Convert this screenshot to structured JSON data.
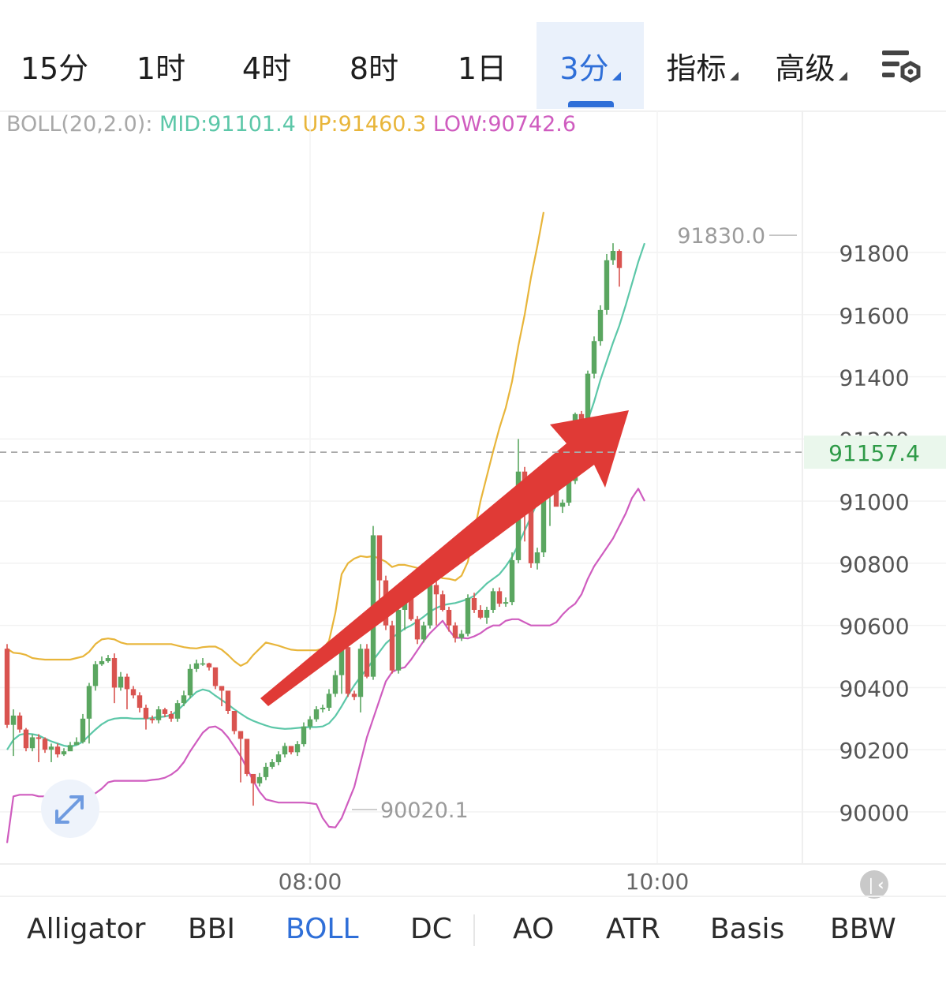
{
  "tabs": [
    {
      "label": "15分",
      "dropdown": false,
      "active": false
    },
    {
      "label": "1时",
      "dropdown": false,
      "active": false
    },
    {
      "label": "4时",
      "dropdown": false,
      "active": false
    },
    {
      "label": "8时",
      "dropdown": false,
      "active": false
    },
    {
      "label": "1日",
      "dropdown": false,
      "active": false
    },
    {
      "label": "3分",
      "dropdown": true,
      "active": true
    },
    {
      "label": "指标",
      "dropdown": true,
      "active": false
    },
    {
      "label": "高级",
      "dropdown": true,
      "active": false
    }
  ],
  "settings_icon": "chart-settings-icon",
  "boll": {
    "name": "BOLL(20,2.0):",
    "mid": "MID:91101.4",
    "up": "UP:91460.3",
    "low": "LOW:90742.6"
  },
  "colors": {
    "up_candle": "#5aa660",
    "down_candle": "#d9534f",
    "mid_line": "#5cc7a8",
    "upper_line": "#e8b53a",
    "lower_line": "#cf5cbf",
    "arrow": "#e03a36",
    "accent": "#2f6fd8",
    "current_price_bg": "#eaf7ec",
    "current_price_text": "#2e9a47"
  },
  "chart_data": {
    "type": "candlestick",
    "y_ticks": [
      91800,
      91600,
      91400,
      91200,
      91000,
      90800,
      90600,
      90400,
      90200,
      90000
    ],
    "y_tick_labels": [
      "91800",
      "91600",
      "91400",
      "91200",
      "91000",
      "90800",
      "90600",
      "90400",
      "90200",
      "90000"
    ],
    "ylim": [
      89900,
      92000
    ],
    "x_tick_labels": [
      {
        "label": "08:00",
        "candle_index": 48
      },
      {
        "label": "10:00",
        "candle_index": 103
      }
    ],
    "current_price": 91157.4,
    "current_price_label": "91157.4",
    "high_marker": {
      "label": "91830.0",
      "value": 91830.0
    },
    "low_marker": {
      "label": "90020.1",
      "value": 90020.1
    },
    "annotation": "red-up-arrow",
    "series_open": [
      90525,
      90280,
      90310,
      90265,
      90205,
      90240,
      90235,
      90200,
      90210,
      90185,
      90195,
      90215,
      90225,
      90300,
      90405,
      90475,
      90485,
      90495,
      90400,
      90435,
      90395,
      90375,
      90335,
      90300,
      90295,
      90330,
      90315,
      90300,
      90350,
      90375,
      90460,
      90478,
      90478,
      90465,
      90405,
      90390,
      90325,
      90260,
      90235,
      90122,
      90092,
      90112,
      90145,
      90160,
      90185,
      90212,
      90192,
      90218,
      90275,
      90298,
      90330,
      90335,
      90380,
      90440,
      90530,
      90380,
      90370,
      90525,
      90435,
      90890,
      90745,
      90600,
      90455,
      90650,
      90735,
      90620,
      90555,
      90600,
      90730,
      90700,
      90650,
      90600,
      90560,
      90573,
      90688,
      90650,
      90625,
      90650,
      90710,
      90670,
      90675,
      90810,
      91095,
      90990,
      90800,
      90835,
      91030,
      91060,
      90982,
      90995,
      91065,
      91280,
      91230,
      91410,
      91515,
      91615,
      91775,
      91805
    ],
    "series_close": [
      90280,
      90310,
      90265,
      90205,
      90240,
      90235,
      90200,
      90210,
      90185,
      90195,
      90215,
      90225,
      90300,
      90405,
      90475,
      90485,
      90495,
      90400,
      90435,
      90395,
      90375,
      90335,
      90300,
      90295,
      90330,
      90315,
      90300,
      90350,
      90375,
      90460,
      90478,
      90478,
      90465,
      90405,
      90390,
      90325,
      90260,
      90235,
      90122,
      90092,
      90112,
      90145,
      90160,
      90185,
      90212,
      90192,
      90218,
      90275,
      90298,
      90330,
      90335,
      90380,
      90440,
      90530,
      90380,
      90370,
      90525,
      90435,
      90890,
      90745,
      90600,
      90455,
      90650,
      90735,
      90620,
      90555,
      90600,
      90730,
      90700,
      90650,
      90600,
      90560,
      90573,
      90688,
      90650,
      90625,
      90650,
      90710,
      90670,
      90675,
      90810,
      91095,
      90990,
      90800,
      90835,
      91030,
      91060,
      90982,
      90995,
      91065,
      91280,
      91230,
      91410,
      91515,
      91615,
      91775,
      91805,
      91750
    ],
    "series_high": [
      90540,
      90330,
      90320,
      90270,
      90250,
      90250,
      90240,
      90220,
      90220,
      90205,
      90225,
      90240,
      90315,
      90415,
      90485,
      90500,
      90505,
      90510,
      90450,
      90445,
      90405,
      90385,
      90345,
      90310,
      90340,
      90335,
      90325,
      90360,
      90390,
      90475,
      90490,
      90495,
      90480,
      90415,
      90400,
      90335,
      90270,
      90250,
      90130,
      90102,
      90125,
      90158,
      90170,
      90195,
      90222,
      90205,
      90228,
      90288,
      90308,
      90340,
      90345,
      90395,
      90455,
      90540,
      90540,
      90390,
      90540,
      90540,
      90920,
      90885,
      90760,
      90615,
      90665,
      90750,
      90745,
      90630,
      90612,
      90740,
      90745,
      90712,
      90660,
      90610,
      90585,
      90700,
      90705,
      90665,
      90660,
      90720,
      90722,
      90690,
      90835,
      91200,
      91110,
      91005,
      90850,
      91060,
      91075,
      91072,
      91005,
      91078,
      91285,
      91290,
      91420,
      91530,
      91630,
      91795,
      91830,
      91810
    ],
    "series_low": [
      90270,
      90180,
      90255,
      90195,
      90195,
      90160,
      90190,
      90160,
      90175,
      90180,
      90205,
      90215,
      90220,
      90220,
      90390,
      90470,
      90480,
      90350,
      90390,
      90330,
      90365,
      90320,
      90265,
      90285,
      90285,
      90305,
      90290,
      90290,
      90340,
      90365,
      90450,
      90470,
      90455,
      90395,
      90340,
      90315,
      90250,
      90095,
      90115,
      90020,
      90082,
      90102,
      90138,
      90150,
      90175,
      90185,
      90180,
      90210,
      90265,
      90290,
      90320,
      90325,
      90370,
      90380,
      90370,
      90360,
      90320,
      90430,
      90425,
      90640,
      90585,
      90445,
      90445,
      90585,
      90615,
      90540,
      90545,
      90590,
      90600,
      90645,
      90580,
      90545,
      90550,
      90565,
      90640,
      90620,
      90605,
      90640,
      90660,
      90660,
      90665,
      90800,
      90870,
      90785,
      90780,
      90820,
      90920,
      91045,
      90962,
      90985,
      91055,
      91150,
      91220,
      91395,
      91500,
      91600,
      91760,
      91690
    ],
    "boll_mid": [
      90200,
      90232,
      90248,
      90252,
      90250,
      90246,
      90236,
      90227,
      90220,
      90213,
      90210,
      90215,
      90226,
      90246,
      90265,
      90282,
      90294,
      90300,
      90302,
      90302,
      90300,
      90300,
      90300,
      90302,
      90305,
      90307,
      90311,
      90326,
      90346,
      90367,
      90386,
      90394,
      90389,
      90374,
      90360,
      90346,
      90330,
      90316,
      90303,
      90293,
      90285,
      90278,
      90272,
      90269,
      90267,
      90268,
      90270,
      90272,
      90273,
      90273,
      90275,
      90285,
      90308,
      90340,
      90375,
      90407,
      90435,
      90460,
      90488,
      90515,
      90542,
      90560,
      90575,
      90590,
      90600,
      90613,
      90628,
      90644,
      90656,
      90665,
      90669,
      90672,
      90678,
      90685,
      90695,
      90715,
      90735,
      90750,
      90765,
      90790,
      90820,
      90860,
      90905,
      90950,
      90995,
      91030,
      91060,
      91085,
      91110,
      91140,
      91170,
      91210,
      91260,
      91320,
      91390,
      91450,
      91510,
      91565,
      91630,
      91700,
      91770,
      91830
    ],
    "boll_up": [
      90525,
      90512,
      90510,
      90505,
      90495,
      90492,
      90490,
      90490,
      90490,
      90490,
      90490,
      90495,
      90500,
      90515,
      90540,
      90555,
      90558,
      90555,
      90545,
      90540,
      90540,
      90540,
      90540,
      90540,
      90540,
      90540,
      90540,
      90535,
      90530,
      90527,
      90526,
      90530,
      90532,
      90532,
      90522,
      90505,
      90485,
      90470,
      90480,
      90505,
      90525,
      90545,
      90540,
      90535,
      90528,
      90522,
      90520,
      90520,
      90520,
      90520,
      90525,
      90550,
      90640,
      90765,
      90800,
      90815,
      90823,
      90820,
      90823,
      90815,
      90805,
      90788,
      90795,
      90795,
      90790,
      90785,
      90775,
      90768,
      90760,
      90752,
      90750,
      90745,
      90760,
      90805,
      90900,
      91000,
      91080,
      91160,
      91235,
      91300,
      91385,
      91500,
      91600,
      91720,
      91820,
      91930
    ],
    "boll_low": [
      89900,
      90050,
      90055,
      90055,
      90055,
      90050,
      90050,
      90050,
      90045,
      90045,
      90045,
      90045,
      90045,
      90050,
      90060,
      90075,
      90095,
      90100,
      90100,
      90100,
      90100,
      90100,
      90100,
      90103,
      90105,
      90110,
      90120,
      90135,
      90160,
      90195,
      90225,
      90255,
      90272,
      90275,
      90263,
      90240,
      90210,
      90180,
      90140,
      90100,
      90065,
      90040,
      90035,
      90030,
      90030,
      90030,
      90030,
      90030,
      90028,
      90025,
      89980,
      89952,
      89950,
      89980,
      90030,
      90080,
      90160,
      90240,
      90300,
      90360,
      90420,
      90450,
      90460,
      90465,
      90490,
      90520,
      90550,
      90575,
      90595,
      90615,
      90585,
      90560,
      90560,
      90558,
      90565,
      90575,
      90590,
      90600,
      90600,
      90615,
      90620,
      90620,
      90610,
      90600,
      90600,
      90600,
      90600,
      90610,
      90635,
      90655,
      90670,
      90700,
      90750,
      90790,
      90820,
      90850,
      90880,
      90920,
      90960,
      91010,
      91040,
      91000
    ]
  },
  "bottom_indicators": [
    {
      "label": "Alligator",
      "active": false
    },
    {
      "label": "BBI",
      "active": false
    },
    {
      "label": "BOLL",
      "active": true
    },
    {
      "label": "DC",
      "active": false
    },
    {
      "label": "AO",
      "active": false
    },
    {
      "label": "ATR",
      "active": false
    },
    {
      "label": "Basis",
      "active": false
    },
    {
      "label": "BBW",
      "active": false
    }
  ]
}
